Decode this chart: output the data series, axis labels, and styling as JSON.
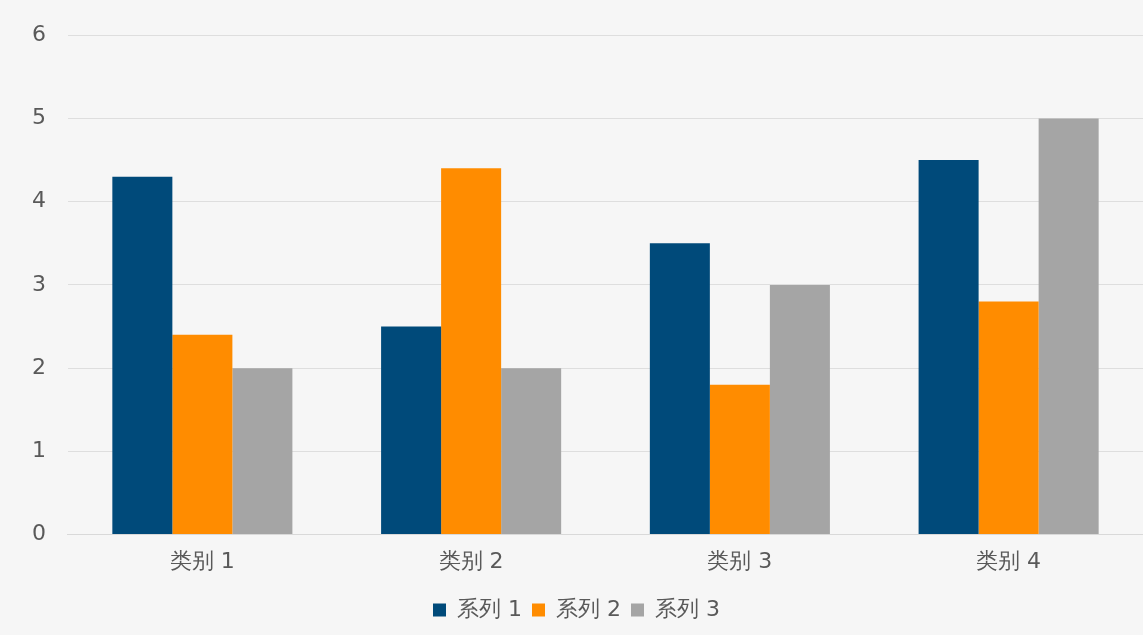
{
  "chart_data": {
    "type": "bar",
    "categories": [
      "类别 1",
      "类别 2",
      "类别 3",
      "类别 4"
    ],
    "series": [
      {
        "name": "系列 1",
        "color": "#004a7a",
        "values": [
          4.3,
          2.5,
          3.5,
          4.5
        ]
      },
      {
        "name": "系列 2",
        "color": "#ff8c00",
        "values": [
          2.4,
          4.4,
          1.8,
          2.8
        ]
      },
      {
        "name": "系列 3",
        "color": "#a5a5a5",
        "values": [
          2,
          2,
          3,
          5
        ]
      }
    ],
    "ylim": [
      0,
      6
    ],
    "yticks": [
      0,
      1,
      2,
      3,
      4,
      5,
      6
    ],
    "grid": "y",
    "legend": "bottom"
  }
}
